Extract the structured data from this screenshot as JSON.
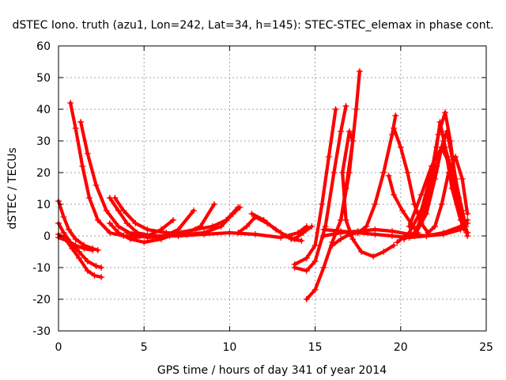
{
  "chart_data": {
    "type": "scatter",
    "title": "dSTEC Iono. truth (azu1, Lon=242, Lat=34, h=145): STEC-STEC_elemax in phase cont.",
    "xlabel": "GPS time / hours of day 341 of year 2014",
    "ylabel": "dSTEC  / TECUs",
    "xlim": [
      0,
      25
    ],
    "ylim": [
      -30,
      60
    ],
    "xticks": [
      "0",
      "5",
      "10",
      "15",
      "20",
      "25"
    ],
    "yticks": [
      "-30",
      "-20",
      "-10",
      "0",
      "10",
      "20",
      "30",
      "40",
      "50",
      "60"
    ],
    "grid": true,
    "legend": "none",
    "marker": "plus",
    "color": "#ff0000",
    "series": [
      {
        "points": [
          [
            0.0,
            11
          ],
          [
            0.3,
            6
          ],
          [
            0.6,
            2
          ],
          [
            1.0,
            -1
          ],
          [
            1.5,
            -3
          ],
          [
            2.0,
            -4
          ],
          [
            2.3,
            -4.5
          ]
        ]
      },
      {
        "points": [
          [
            0.0,
            4
          ],
          [
            0.3,
            1
          ],
          [
            0.7,
            -2
          ],
          [
            1.2,
            -5
          ],
          [
            1.7,
            -8
          ],
          [
            2.2,
            -9.5
          ],
          [
            2.5,
            -10
          ]
        ]
      },
      {
        "points": [
          [
            0.0,
            0.5
          ],
          [
            0.4,
            -1
          ],
          [
            0.8,
            -4
          ],
          [
            1.2,
            -7
          ],
          [
            1.7,
            -11
          ],
          [
            2.1,
            -12.5
          ],
          [
            2.5,
            -13
          ]
        ]
      },
      {
        "points": [
          [
            0.0,
            -0.5
          ],
          [
            0.5,
            -1.5
          ],
          [
            1.0,
            -3
          ],
          [
            1.5,
            -4
          ],
          [
            2.0,
            -4.5
          ]
        ]
      },
      {
        "points": [
          [
            0.7,
            42
          ],
          [
            1.0,
            34
          ],
          [
            1.4,
            22
          ],
          [
            1.8,
            12
          ],
          [
            2.3,
            5
          ],
          [
            3.0,
            1
          ],
          [
            3.8,
            0
          ],
          [
            4.5,
            -0.5
          ],
          [
            5.2,
            0
          ],
          [
            6.0,
            2
          ],
          [
            6.7,
            5
          ]
        ]
      },
      {
        "points": [
          [
            1.3,
            36
          ],
          [
            1.7,
            26
          ],
          [
            2.2,
            16
          ],
          [
            2.8,
            8
          ],
          [
            3.5,
            3
          ],
          [
            4.3,
            0.5
          ],
          [
            5.2,
            -0.5
          ],
          [
            6.2,
            0
          ],
          [
            7.0,
            2
          ],
          [
            7.9,
            8
          ]
        ]
      },
      {
        "points": [
          [
            3.0,
            12
          ],
          [
            3.5,
            8
          ],
          [
            4.0,
            4
          ],
          [
            4.6,
            1
          ],
          [
            5.5,
            0
          ],
          [
            6.5,
            0
          ],
          [
            7.5,
            1
          ],
          [
            8.3,
            3
          ],
          [
            9.1,
            10
          ]
        ]
      },
      {
        "points": [
          [
            3.3,
            12
          ],
          [
            3.8,
            8
          ],
          [
            4.5,
            4
          ],
          [
            5.2,
            2
          ],
          [
            6.3,
            1
          ],
          [
            7.5,
            0.5
          ],
          [
            8.5,
            1
          ],
          [
            9.5,
            3
          ],
          [
            10.2,
            7
          ],
          [
            10.6,
            9
          ]
        ]
      },
      {
        "points": [
          [
            3.0,
            4
          ],
          [
            3.5,
            1
          ],
          [
            4.2,
            -1
          ],
          [
            5.0,
            -2
          ],
          [
            6.0,
            -1
          ],
          [
            7.0,
            1
          ],
          [
            8.0,
            2
          ],
          [
            9.0,
            3
          ],
          [
            9.8,
            5
          ],
          [
            10.5,
            9
          ]
        ]
      },
      {
        "points": [
          [
            4.0,
            1
          ],
          [
            5.5,
            0
          ],
          [
            7.0,
            0
          ],
          [
            8.5,
            0.5
          ],
          [
            10.0,
            1
          ],
          [
            11.5,
            0.5
          ],
          [
            13.0,
            -0.5
          ],
          [
            14.0,
            1
          ],
          [
            14.5,
            3
          ]
        ]
      },
      {
        "points": [
          [
            10.5,
            1
          ],
          [
            11.0,
            3
          ],
          [
            11.5,
            6
          ],
          [
            12.2,
            4
          ],
          [
            13.0,
            1
          ],
          [
            13.6,
            -1
          ],
          [
            14.2,
            -1.5
          ]
        ]
      },
      {
        "points": [
          [
            11.3,
            7
          ],
          [
            12.0,
            5
          ],
          [
            12.7,
            2
          ],
          [
            13.3,
            0
          ],
          [
            13.8,
            -1
          ],
          [
            14.3,
            1
          ],
          [
            14.8,
            3
          ]
        ]
      },
      {
        "points": [
          [
            13.8,
            -9
          ],
          [
            14.5,
            -7
          ],
          [
            15.0,
            -3
          ],
          [
            15.4,
            10
          ],
          [
            15.8,
            25
          ],
          [
            16.2,
            40
          ]
        ]
      },
      {
        "points": [
          [
            13.8,
            -10
          ],
          [
            14.5,
            -11
          ],
          [
            15.0,
            -8
          ],
          [
            15.6,
            3
          ],
          [
            16.1,
            20
          ],
          [
            16.5,
            33
          ],
          [
            16.8,
            41
          ]
        ]
      },
      {
        "points": [
          [
            14.5,
            -20
          ],
          [
            15.0,
            -17
          ],
          [
            15.5,
            -10
          ],
          [
            16.0,
            -2
          ],
          [
            16.5,
            5
          ],
          [
            17.0,
            20
          ],
          [
            17.4,
            40
          ],
          [
            17.6,
            52
          ]
        ]
      },
      {
        "points": [
          [
            16.0,
            -3
          ],
          [
            16.5,
            -1
          ],
          [
            17.0,
            0.5
          ],
          [
            17.5,
            1
          ],
          [
            18.0,
            3
          ],
          [
            18.5,
            10
          ],
          [
            19.0,
            20
          ],
          [
            19.5,
            32
          ],
          [
            19.7,
            38
          ]
        ]
      },
      {
        "points": [
          [
            16.5,
            5
          ],
          [
            16.8,
            15
          ],
          [
            17.2,
            30
          ],
          [
            17.0,
            33
          ],
          [
            16.6,
            20
          ],
          [
            16.8,
            5
          ],
          [
            17.2,
            -1
          ],
          [
            17.7,
            -5
          ],
          [
            18.4,
            -6.5
          ],
          [
            19.0,
            -5
          ],
          [
            19.6,
            -3
          ]
        ]
      },
      {
        "points": [
          [
            15.5,
            0
          ],
          [
            16.5,
            1
          ],
          [
            17.5,
            1.5
          ],
          [
            18.5,
            2
          ],
          [
            19.5,
            1.5
          ],
          [
            20.5,
            0.5
          ],
          [
            21.5,
            0
          ],
          [
            22.5,
            0.5
          ],
          [
            23.5,
            2
          ],
          [
            23.9,
            4
          ]
        ]
      },
      {
        "points": [
          [
            15.5,
            2
          ],
          [
            16.5,
            1.5
          ],
          [
            17.5,
            1
          ],
          [
            18.5,
            0.5
          ],
          [
            19.5,
            0
          ],
          [
            20.5,
            -0.5
          ],
          [
            21.5,
            0
          ],
          [
            22.5,
            1
          ],
          [
            23.5,
            3
          ],
          [
            23.9,
            5
          ]
        ]
      },
      {
        "points": [
          [
            19.3,
            19
          ],
          [
            19.6,
            13
          ],
          [
            20.1,
            8
          ],
          [
            20.6,
            4
          ],
          [
            21.0,
            1
          ]
        ]
      },
      {
        "points": [
          [
            19.6,
            34
          ],
          [
            20.0,
            28
          ],
          [
            20.4,
            20
          ],
          [
            20.8,
            10
          ],
          [
            21.2,
            4
          ],
          [
            21.6,
            1
          ],
          [
            22.0,
            3
          ],
          [
            22.4,
            10
          ],
          [
            22.8,
            20
          ],
          [
            23.2,
            25
          ],
          [
            23.6,
            18
          ],
          [
            23.9,
            7
          ]
        ]
      },
      {
        "points": [
          [
            20.2,
            -1
          ],
          [
            20.8,
            1
          ],
          [
            21.3,
            6
          ],
          [
            21.7,
            15
          ],
          [
            22.1,
            28
          ],
          [
            22.3,
            36
          ],
          [
            22.6,
            28
          ],
          [
            23.0,
            15
          ],
          [
            23.5,
            5
          ],
          [
            23.9,
            1
          ]
        ]
      },
      {
        "points": [
          [
            19.8,
            -2
          ],
          [
            20.5,
            1
          ],
          [
            21.2,
            8
          ],
          [
            21.8,
            20
          ],
          [
            22.2,
            32
          ],
          [
            22.6,
            39
          ],
          [
            22.9,
            30
          ],
          [
            23.2,
            18
          ],
          [
            23.6,
            8
          ],
          [
            23.9,
            0
          ]
        ]
      },
      {
        "points": [
          [
            20.8,
            0
          ],
          [
            21.5,
            7
          ],
          [
            22.0,
            18
          ],
          [
            22.4,
            28
          ],
          [
            22.7,
            33
          ],
          [
            23.0,
            25
          ],
          [
            23.4,
            12
          ],
          [
            23.8,
            3
          ]
        ]
      },
      {
        "points": [
          [
            21.0,
            3
          ],
          [
            21.6,
            12
          ],
          [
            22.1,
            22
          ],
          [
            22.5,
            30
          ],
          [
            22.8,
            24
          ],
          [
            23.2,
            15
          ],
          [
            23.6,
            6
          ],
          [
            23.9,
            1
          ]
        ]
      },
      {
        "points": [
          [
            20.5,
            3
          ],
          [
            21.2,
            13
          ],
          [
            21.8,
            22
          ],
          [
            22.4,
            28
          ],
          [
            22.9,
            22
          ],
          [
            23.3,
            10
          ],
          [
            23.7,
            2
          ]
        ]
      }
    ]
  }
}
